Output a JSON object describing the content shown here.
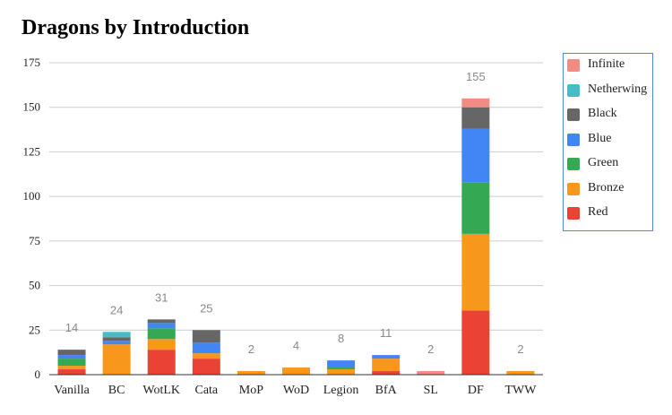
{
  "chart_data": {
    "type": "bar",
    "stacked": true,
    "title": "Dragons by Introduction",
    "xlabel": "",
    "ylabel": "",
    "ylim": [
      0,
      175
    ],
    "yticks": [
      0,
      25,
      50,
      75,
      100,
      125,
      150,
      175
    ],
    "grid": true,
    "legend_position": "right",
    "categories": [
      "Vanilla",
      "BC",
      "WotLK",
      "Cata",
      "MoP",
      "WoD",
      "Legion",
      "BfA",
      "SL",
      "DF",
      "TWW"
    ],
    "totals": [
      14,
      24,
      31,
      25,
      2,
      4,
      8,
      11,
      2,
      155,
      2
    ],
    "series": [
      {
        "name": "Red",
        "color": "#ea4335",
        "values": [
          3,
          0,
          14,
          9,
          0,
          0,
          0,
          2,
          0,
          36,
          0
        ]
      },
      {
        "name": "Bronze",
        "color": "#f7981d",
        "values": [
          2,
          17,
          6,
          3,
          2,
          4,
          3,
          7,
          0,
          43,
          2
        ]
      },
      {
        "name": "Green",
        "color": "#34a853",
        "values": [
          4,
          0,
          6,
          0,
          0,
          0,
          1,
          0,
          0,
          29,
          0
        ]
      },
      {
        "name": "Blue",
        "color": "#4285f4",
        "values": [
          2,
          2,
          3,
          6,
          0,
          0,
          4,
          2,
          0,
          30,
          0
        ]
      },
      {
        "name": "Black",
        "color": "#666666",
        "values": [
          3,
          2,
          2,
          7,
          0,
          0,
          0,
          0,
          0,
          12,
          0
        ]
      },
      {
        "name": "Netherwing",
        "color": "#46bdc6",
        "values": [
          0,
          3,
          0,
          0,
          0,
          0,
          0,
          0,
          0,
          0,
          0
        ]
      },
      {
        "name": "Infinite",
        "color": "#f28b82",
        "values": [
          0,
          0,
          0,
          0,
          0,
          0,
          0,
          0,
          2,
          5,
          0
        ]
      }
    ]
  }
}
